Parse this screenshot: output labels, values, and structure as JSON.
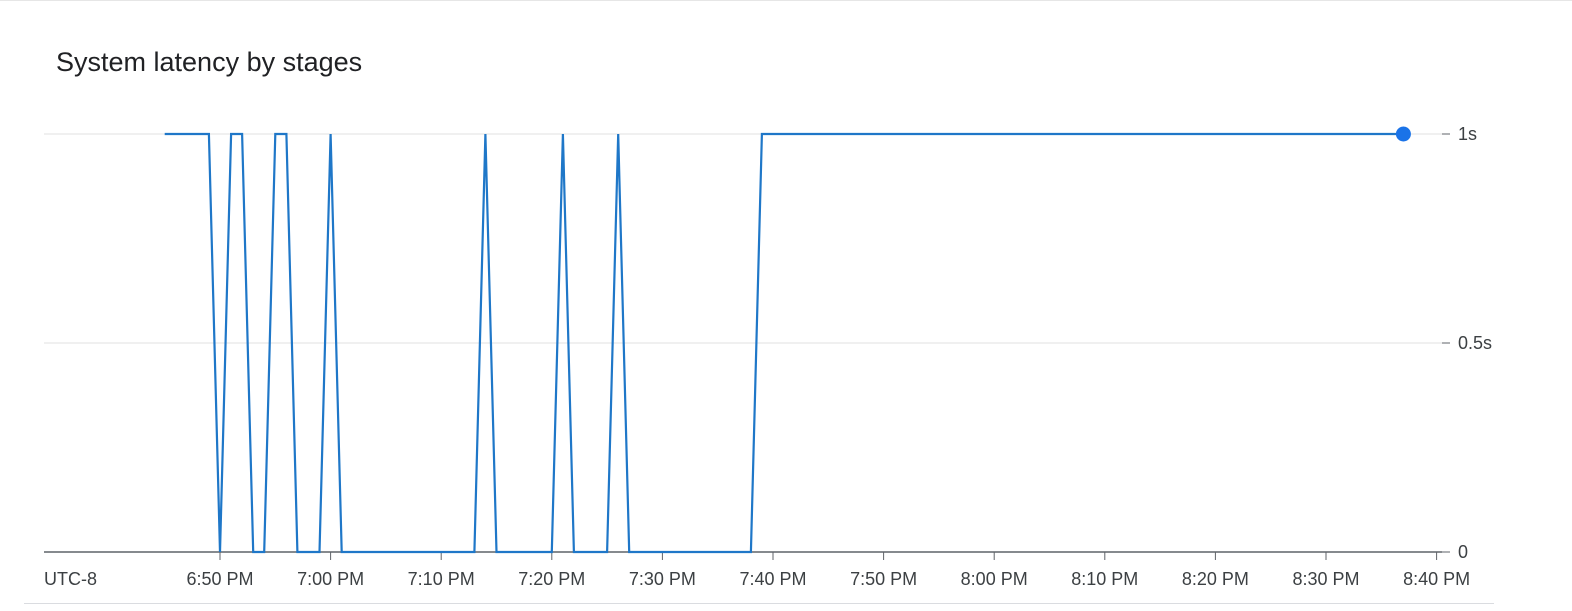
{
  "title": "System latency by stages",
  "timezone_label": "UTC-8",
  "colors": {
    "series": "#1a73e8",
    "line": "#1f77c8",
    "grid": "#e0e0e0",
    "axis": "#5f6368"
  },
  "chart_data": {
    "type": "line",
    "title": "System latency by stages",
    "xlabel": "",
    "ylabel": "",
    "x_unit": "minutes after 6:40 PM",
    "xlim": [
      "6:44 PM",
      "8:40 PM"
    ],
    "ylim": [
      0,
      1
    ],
    "y_ticks": [
      {
        "value": 0,
        "label": "0"
      },
      {
        "value": 0.5,
        "label": "0.5s"
      },
      {
        "value": 1,
        "label": "1s"
      }
    ],
    "x_ticks": [
      "6:50 PM",
      "7:00 PM",
      "7:10 PM",
      "7:20 PM",
      "7:30 PM",
      "7:40 PM",
      "7:50 PM",
      "8:00 PM",
      "8:10 PM",
      "8:20 PM",
      "8:30 PM",
      "8:40 PM"
    ],
    "grid": true,
    "legend": "none",
    "series": [
      {
        "points": [
          [
            "6:45 PM",
            1
          ],
          [
            "6:48 PM",
            1
          ],
          [
            "6:49 PM",
            1
          ],
          [
            "6:50 PM",
            0
          ],
          [
            "6:51 PM",
            1
          ],
          [
            "6:52 PM",
            1
          ],
          [
            "6:53 PM",
            0
          ],
          [
            "6:54 PM",
            0
          ],
          [
            "6:55 PM",
            1
          ],
          [
            "6:56 PM",
            1
          ],
          [
            "6:57 PM",
            0
          ],
          [
            "6:59 PM",
            0
          ],
          [
            "7:00 PM",
            1
          ],
          [
            "7:01 PM",
            0
          ],
          [
            "7:13 PM",
            0
          ],
          [
            "7:14 PM",
            1
          ],
          [
            "7:15 PM",
            0
          ],
          [
            "7:20 PM",
            0
          ],
          [
            "7:21 PM",
            1
          ],
          [
            "7:22 PM",
            0
          ],
          [
            "7:25 PM",
            0
          ],
          [
            "7:26 PM",
            1
          ],
          [
            "7:27 PM",
            0
          ],
          [
            "7:38 PM",
            0
          ],
          [
            "7:39 PM",
            1
          ],
          [
            "8:37 PM",
            1
          ]
        ]
      }
    ]
  }
}
